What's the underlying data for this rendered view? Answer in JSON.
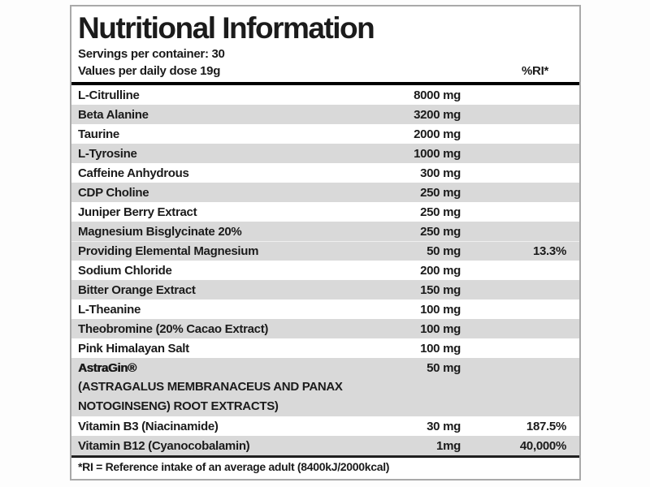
{
  "header": {
    "title": "Nutritional Information",
    "servings": "Servings per container: 30",
    "values_line": "Values per daily dose 19g",
    "ri_header": "%RI*"
  },
  "rows": [
    {
      "name": "L-Citrulline",
      "amount": "8000 mg",
      "ri": "",
      "shaded": false
    },
    {
      "name": "Beta Alanine",
      "amount": "3200 mg",
      "ri": "",
      "shaded": true
    },
    {
      "name": "Taurine",
      "amount": "2000 mg",
      "ri": "",
      "shaded": false
    },
    {
      "name": "L-Tyrosine",
      "amount": "1000 mg",
      "ri": "",
      "shaded": true
    },
    {
      "name": "Caffeine Anhydrous",
      "amount": "300 mg",
      "ri": "",
      "shaded": false
    },
    {
      "name": "CDP Choline",
      "amount": "250 mg",
      "ri": "",
      "shaded": true
    },
    {
      "name": "Juniper Berry Extract",
      "amount": "250 mg",
      "ri": "",
      "shaded": false
    },
    {
      "name": "Magnesium Bisglycinate 20%",
      "amount": "250 mg",
      "ri": "",
      "shaded": true
    },
    {
      "name": "Providing Elemental Magnesium",
      "amount": "50 mg",
      "ri": "13.3%",
      "shaded": true
    },
    {
      "name": "Sodium Chloride",
      "amount": "200 mg",
      "ri": "",
      "shaded": false
    },
    {
      "name": "Bitter Orange Extract",
      "amount": "150 mg",
      "ri": "",
      "shaded": true
    },
    {
      "name": "L-Theanine",
      "amount": "100 mg",
      "ri": "",
      "shaded": false
    },
    {
      "name": "Theobromine (20% Cacao Extract)",
      "amount": "100 mg",
      "ri": "",
      "shaded": true
    },
    {
      "name": "Pink Himalayan Salt",
      "amount": "100 mg",
      "ri": "",
      "shaded": false
    },
    {
      "name": "AstraGin®",
      "amount": "50 mg",
      "ri": "",
      "shaded": true,
      "bold": true,
      "sublines": [
        "(ASTRAGALUS MEMBRANACEUS AND PANAX",
        "NOTOGINSENG) ROOT EXTRACTS)"
      ]
    },
    {
      "name": "Vitamin B3 (Niacinamide)",
      "amount": "30 mg",
      "ri": "187.5%",
      "shaded": false
    },
    {
      "name": "Vitamin B12 (Cyanocobalamin)",
      "amount": "1mg",
      "ri": "40,000%",
      "shaded": true
    }
  ],
  "footer": {
    "note": "*RI = Reference intake of an average adult (8400kJ/2000kcal)"
  },
  "colors": {
    "shaded_row": "#d9d9d9",
    "border": "#a9a9a9",
    "rule": "#000000",
    "text": "#1b1b1b"
  }
}
